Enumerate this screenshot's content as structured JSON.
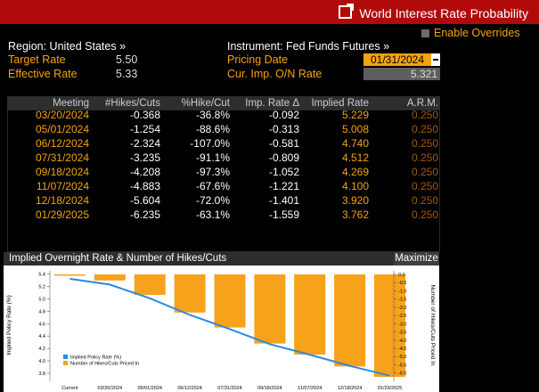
{
  "title": "World Interest Rate Probability",
  "enable_overrides": "Enable Overrides",
  "region": "Region: United States »",
  "instrument": "Instrument: Fed Funds Futures »",
  "target_rate_label": "Target Rate",
  "target_rate_value": "5.50",
  "effective_rate_label": "Effective Rate",
  "effective_rate_value": "5.33",
  "pricing_date_label": "Pricing Date",
  "pricing_date_value": "01/31/2024",
  "cur_imp_label": "Cur. Imp. O/N Rate",
  "cur_imp_value": "5.321",
  "table": {
    "headers": [
      "Meeting",
      "#Hikes/Cuts",
      "%Hike/Cut",
      "Imp. Rate Δ",
      "Implied Rate",
      "A.R.M."
    ],
    "rows": [
      [
        "03/20/2024",
        "-0.368",
        "-36.8%",
        "-0.092",
        "5.229",
        "0.250"
      ],
      [
        "05/01/2024",
        "-1.254",
        "-88.6%",
        "-0.313",
        "5.008",
        "0.250"
      ],
      [
        "06/12/2024",
        "-2.324",
        "-107.0%",
        "-0.581",
        "4.740",
        "0.250"
      ],
      [
        "07/31/2024",
        "-3.235",
        "-91.1%",
        "-0.809",
        "4.512",
        "0.250"
      ],
      [
        "09/18/2024",
        "-4.208",
        "-97.3%",
        "-1.052",
        "4.269",
        "0.250"
      ],
      [
        "11/07/2024",
        "-4.883",
        "-67.6%",
        "-1.221",
        "4.100",
        "0.250"
      ],
      [
        "12/18/2024",
        "-5.604",
        "-72.0%",
        "-1.401",
        "3.920",
        "0.250"
      ],
      [
        "01/29/2025",
        "-6.235",
        "-63.1%",
        "-1.559",
        "3.762",
        "0.250"
      ]
    ]
  },
  "maximize_label": "Maximize",
  "colors": {
    "title_bar": "#b00a0a",
    "orange": "#f5a30b",
    "bar": "#f7a21b",
    "line": "#2a8ae0"
  },
  "chart_data": {
    "type": "bar",
    "title": "Implied Overnight Rate & Number of Hikes/Cuts",
    "categories": [
      "Current",
      "03/20/2024",
      "05/01/2024",
      "06/12/2024",
      "07/31/2024",
      "09/18/2024",
      "11/07/2024",
      "12/18/2024",
      "01/29/2025"
    ],
    "series": [
      {
        "name": "Implied Policy Rate (%)",
        "type": "line",
        "axis": "left",
        "values": [
          5.321,
          5.229,
          5.008,
          4.74,
          4.512,
          4.269,
          4.1,
          3.92,
          3.762
        ]
      },
      {
        "name": "Number of Hikes/Cuts Priced In",
        "type": "bar",
        "axis": "right",
        "values": [
          0,
          -0.368,
          -1.254,
          -2.324,
          -3.235,
          -4.208,
          -4.883,
          -5.604,
          -6.235
        ]
      }
    ],
    "ylabel": "Implied Policy Rate (%)",
    "y2label": "Number of Hikes/Cuts Priced In",
    "ylim": [
      3.7,
      5.45
    ],
    "yticks": [
      "5.4",
      "5.2",
      "5.0",
      "4.8",
      "4.6",
      "4.4",
      "4.2",
      "4.0",
      "3.8"
    ],
    "y2lim": [
      -6.4,
      0.25
    ],
    "y2ticks": [
      "0.0",
      "-0.5",
      "-1.0",
      "-1.5",
      "-2.0",
      "-2.5",
      "-3.0",
      "-3.5",
      "-4.0",
      "-4.5",
      "-5.0",
      "-5.5",
      "-6.0"
    ],
    "legend_position": "bottom-left",
    "grid": false
  }
}
